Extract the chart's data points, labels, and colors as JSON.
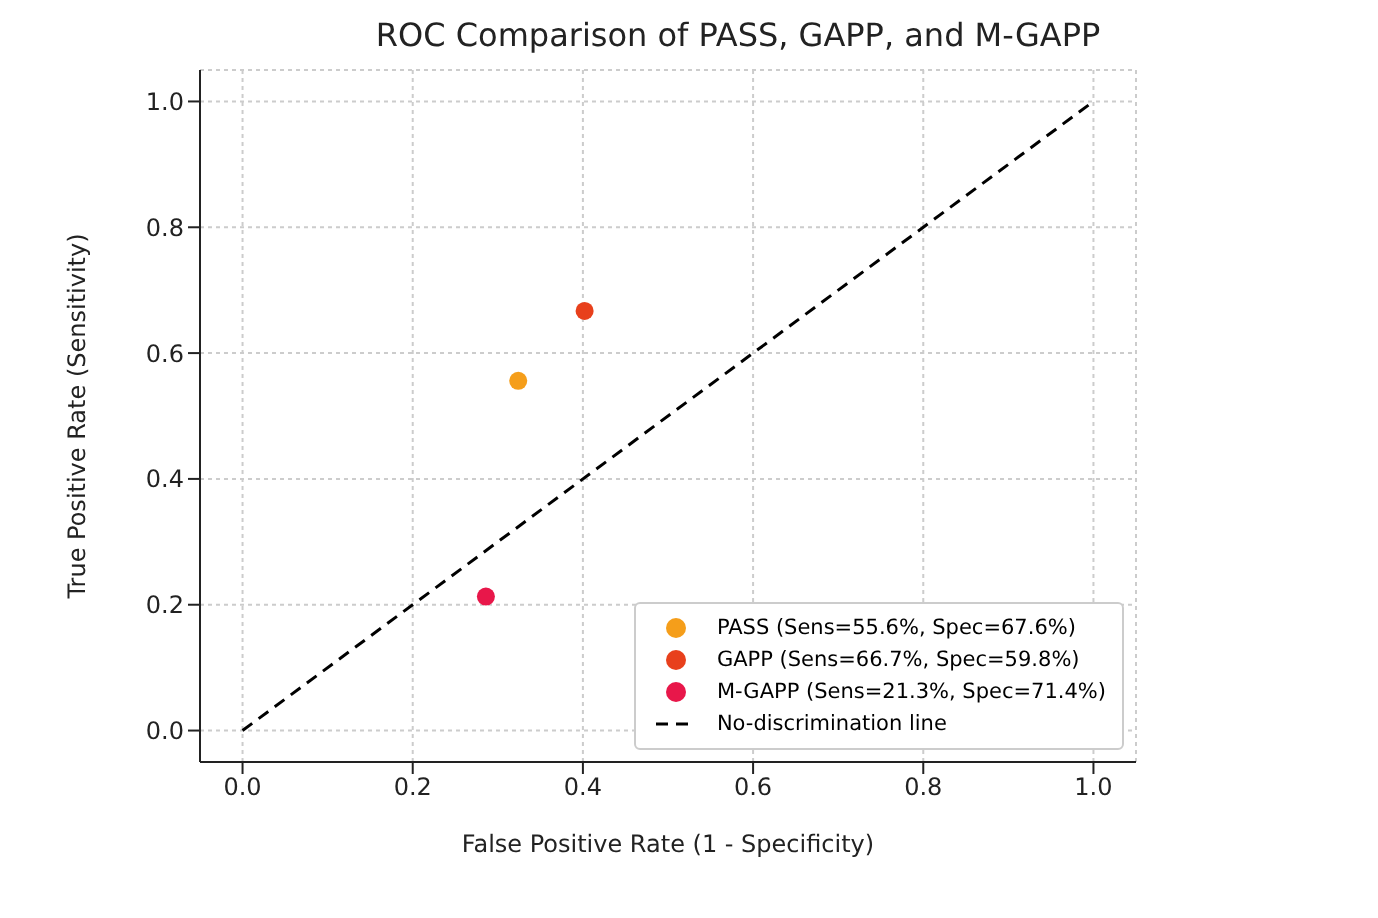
{
  "chart_data": {
    "type": "scatter",
    "title": "ROC Comparison of PASS, GAPP, and M-GAPP",
    "xlabel": "False Positive Rate (1 - Specificity)",
    "ylabel": "True Positive Rate (Sensitivity)",
    "xlim": [
      -0.05,
      1.05
    ],
    "ylim": [
      -0.05,
      1.05
    ],
    "xticks": [
      {
        "value": 0,
        "label": "0.0"
      },
      0.2,
      0.4,
      0.6,
      0.8,
      {
        "value": 1,
        "label": "1.0"
      }
    ],
    "yticks": [
      {
        "value": 0,
        "label": "0.0"
      },
      0.2,
      0.4,
      0.6,
      0.8,
      {
        "value": 1,
        "label": "1.0"
      }
    ],
    "grid": true,
    "legend": "bottom right",
    "marker": "circle",
    "series": [
      {
        "name": "PASS (Sens=55.6%, Spec=67.6%)",
        "color": "#f59e1a",
        "x": [
          0.324
        ],
        "values": [
          0.556
        ]
      },
      {
        "name": "GAPP (Sens=66.7%, Spec=59.8%)",
        "color": "#e8401c",
        "x": [
          0.402
        ],
        "values": [
          0.667
        ]
      },
      {
        "name": "M-GAPP (Sens=21.3%, Spec=71.4%)",
        "color": "#e8174a",
        "x": [
          0.286
        ],
        "values": [
          0.213
        ]
      },
      {
        "name": "No-discrimination line",
        "type": "line",
        "color": "#000000",
        "x": [
          0,
          1
        ],
        "values": [
          0,
          1
        ],
        "marker": "none",
        "line_style": "dashed"
      }
    ]
  }
}
